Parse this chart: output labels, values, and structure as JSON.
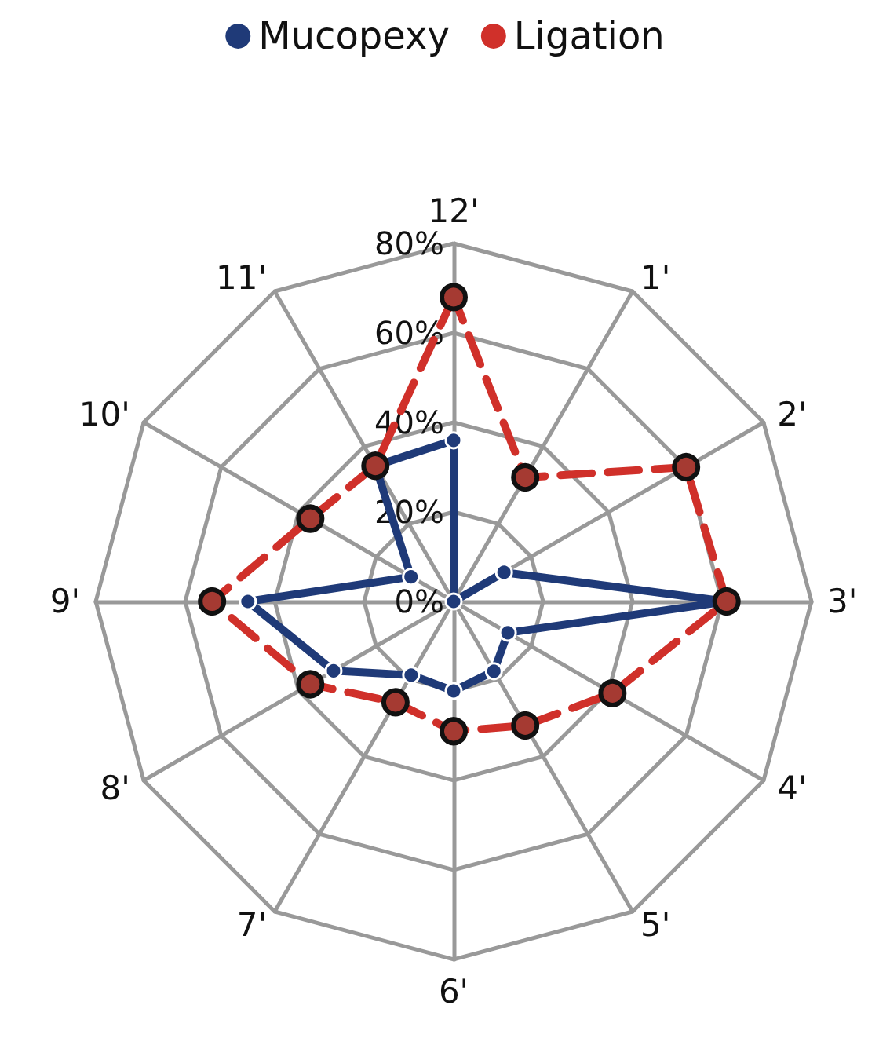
{
  "chart_data": {
    "type": "radar",
    "categories": [
      "12'",
      "1'",
      "2'",
      "3'",
      "4'",
      "5'",
      "6'",
      "7'",
      "8'",
      "9'",
      "10'",
      "11'"
    ],
    "series": [
      {
        "name": "Mucopexy",
        "color": "#1f3a78",
        "line_style": "solid",
        "values": [
          36,
          0,
          13,
          61,
          14,
          18,
          20,
          19,
          31,
          46,
          11,
          35
        ]
      },
      {
        "name": "Ligation",
        "color": "#d0302a",
        "line_style": "dashed",
        "values": [
          68,
          32,
          60,
          61,
          41,
          32,
          29,
          26,
          37,
          54,
          37,
          35
        ]
      }
    ],
    "ylim": [
      0,
      80
    ],
    "yticks": [
      {
        "value": 0,
        "label": "0%"
      },
      {
        "value": 20,
        "label": "20%"
      },
      {
        "value": 40,
        "label": "40%"
      },
      {
        "value": 60,
        "label": "60%"
      },
      {
        "value": 80,
        "label": "80%"
      }
    ],
    "grid": true,
    "legend": "top",
    "marker": "circle"
  }
}
